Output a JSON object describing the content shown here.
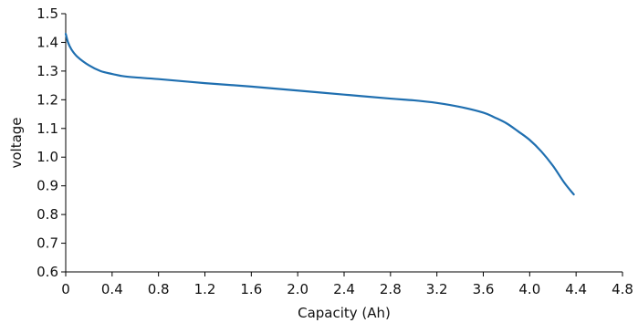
{
  "chart_data": {
    "type": "line",
    "title": "",
    "xlabel": "Capacity (Ah)",
    "ylabel": "voltage",
    "xlim": [
      0,
      4.8
    ],
    "ylim": [
      0.6,
      1.5
    ],
    "x_ticks": [
      "0",
      "0.4",
      "0.8",
      "1.2",
      "1.6",
      "2.0",
      "2.4",
      "2.8",
      "3.2",
      "3.6",
      "4.0",
      "4.4",
      "4.8"
    ],
    "y_ticks": [
      "0.6",
      "0.7",
      "0.8",
      "0.9",
      "1.0",
      "1.1",
      "1.2",
      "1.3",
      "1.4",
      "1.5"
    ],
    "grid": false,
    "legend": "none",
    "line_color": "#1f6fb0",
    "series": [
      {
        "x": [
          0,
          0.02,
          0.05,
          0.1,
          0.2,
          0.3,
          0.4,
          0.5,
          0.6,
          0.8,
          1.2,
          1.6,
          2.0,
          2.4,
          2.8,
          3.0,
          3.2,
          3.4,
          3.6,
          3.7,
          3.8,
          3.9,
          4.0,
          4.1,
          4.2,
          4.3,
          4.38
        ],
        "y": [
          1.43,
          1.4,
          1.375,
          1.35,
          1.32,
          1.3,
          1.29,
          1.282,
          1.278,
          1.272,
          1.258,
          1.246,
          1.232,
          1.218,
          1.204,
          1.198,
          1.189,
          1.175,
          1.155,
          1.138,
          1.118,
          1.09,
          1.06,
          1.02,
          0.97,
          0.91,
          0.87
        ]
      }
    ]
  }
}
